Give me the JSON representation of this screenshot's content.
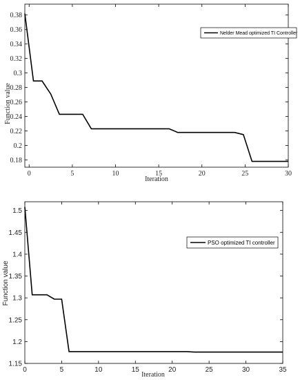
{
  "chart_data": [
    {
      "type": "line",
      "xlabel": "Iteration",
      "ylabel": "Function value",
      "xlim": [
        -0.5,
        30
      ],
      "ylim": [
        0.17,
        0.395
      ],
      "xticks": [
        "0",
        "5",
        "10",
        "15",
        "20",
        "25",
        "30"
      ],
      "yticks": [
        "0.18",
        "0.2",
        "0.22",
        "0.24",
        "0.26",
        "0.28",
        "0.3",
        "0.32",
        "0.34",
        "0.36",
        "0.38"
      ],
      "grid": false,
      "legend_position": "top-right",
      "series": [
        {
          "name": "Nelder Mead optimized TI Controller",
          "color": "#000000",
          "x": [
            -0.5,
            0.5,
            1.5,
            2.5,
            3.5,
            6.2,
            7.2,
            16.2,
            17.2,
            23.8,
            24.8,
            25.8,
            30
          ],
          "y": [
            0.382,
            0.289,
            0.289,
            0.271,
            0.243,
            0.243,
            0.223,
            0.223,
            0.218,
            0.218,
            0.215,
            0.178,
            0.178
          ]
        }
      ]
    },
    {
      "type": "line",
      "xlabel": "Iteration",
      "ylabel": "Function value",
      "xlim": [
        0,
        35
      ],
      "ylim": [
        1.15,
        1.52
      ],
      "xticks": [
        "0",
        "5",
        "10",
        "15",
        "20",
        "25",
        "30",
        "35"
      ],
      "yticks": [
        "1.15",
        "1.2",
        "1.25",
        "1.3",
        "1.35",
        "1.4",
        "1.45",
        "1.5"
      ],
      "grid": false,
      "legend_position": "top-right",
      "series": [
        {
          "name": "PSO optimized TI controller",
          "color": "#000000",
          "x": [
            0,
            1,
            2,
            3,
            4,
            5,
            6,
            7,
            22,
            23,
            35
          ],
          "y": [
            1.508,
            1.307,
            1.307,
            1.307,
            1.297,
            1.297,
            1.177,
            1.177,
            1.177,
            1.176,
            1.176
          ]
        }
      ]
    }
  ]
}
